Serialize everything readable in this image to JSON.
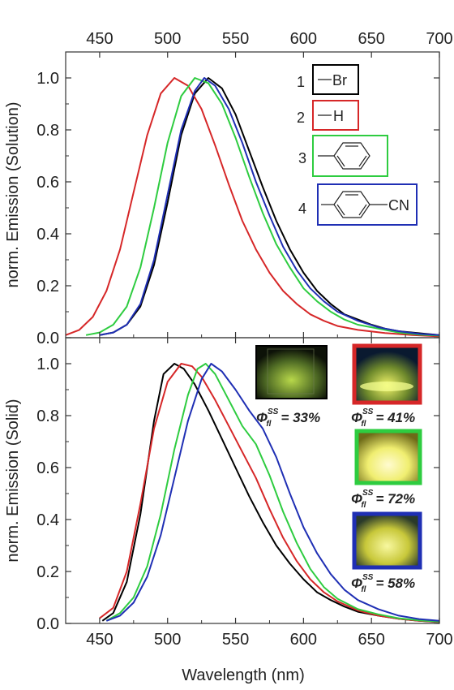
{
  "chart_data": [
    {
      "type": "line",
      "panel": "top",
      "xlabel": "",
      "ylabel": "norm. Emission (Solution)",
      "xlim": [
        425,
        700
      ],
      "ylim": [
        0,
        1.1
      ],
      "x_ticks": [
        450,
        500,
        550,
        600,
        650,
        700
      ],
      "y_ticks": [
        "0.0",
        "0.2",
        "0.4",
        "0.6",
        "0.8",
        "1.0"
      ],
      "x_tick_position": "top",
      "series": [
        {
          "color": "#000000",
          "points": [
            [
              450,
              0.01
            ],
            [
              460,
              0.02
            ],
            [
              470,
              0.05
            ],
            [
              480,
              0.12
            ],
            [
              490,
              0.28
            ],
            [
              500,
              0.52
            ],
            [
              510,
              0.78
            ],
            [
              520,
              0.94
            ],
            [
              530,
              1.0
            ],
            [
              540,
              0.96
            ],
            [
              550,
              0.86
            ],
            [
              560,
              0.72
            ],
            [
              570,
              0.58
            ],
            [
              580,
              0.45
            ],
            [
              590,
              0.34
            ],
            [
              600,
              0.25
            ],
            [
              610,
              0.18
            ],
            [
              620,
              0.13
            ],
            [
              630,
              0.09
            ],
            [
              640,
              0.07
            ],
            [
              650,
              0.05
            ],
            [
              660,
              0.035
            ],
            [
              670,
              0.025
            ],
            [
              680,
              0.02
            ],
            [
              690,
              0.015
            ],
            [
              700,
              0.01
            ]
          ]
        },
        {
          "color": "#d62728",
          "points": [
            [
              425,
              0.01
            ],
            [
              435,
              0.03
            ],
            [
              445,
              0.08
            ],
            [
              455,
              0.18
            ],
            [
              465,
              0.34
            ],
            [
              475,
              0.56
            ],
            [
              485,
              0.78
            ],
            [
              495,
              0.94
            ],
            [
              505,
              1.0
            ],
            [
              515,
              0.97
            ],
            [
              525,
              0.88
            ],
            [
              535,
              0.74
            ],
            [
              545,
              0.59
            ],
            [
              555,
              0.45
            ],
            [
              565,
              0.34
            ],
            [
              575,
              0.25
            ],
            [
              585,
              0.18
            ],
            [
              595,
              0.13
            ],
            [
              605,
              0.09
            ],
            [
              615,
              0.065
            ],
            [
              625,
              0.045
            ],
            [
              640,
              0.03
            ],
            [
              660,
              0.018
            ],
            [
              680,
              0.01
            ],
            [
              700,
              0.005
            ]
          ]
        },
        {
          "color": "#2ecc40",
          "points": [
            [
              440,
              0.01
            ],
            [
              450,
              0.02
            ],
            [
              460,
              0.05
            ],
            [
              470,
              0.12
            ],
            [
              480,
              0.27
            ],
            [
              490,
              0.5
            ],
            [
              500,
              0.75
            ],
            [
              510,
              0.93
            ],
            [
              520,
              1.0
            ],
            [
              530,
              0.98
            ],
            [
              540,
              0.9
            ],
            [
              550,
              0.77
            ],
            [
              560,
              0.62
            ],
            [
              570,
              0.48
            ],
            [
              580,
              0.36
            ],
            [
              590,
              0.27
            ],
            [
              600,
              0.19
            ],
            [
              610,
              0.14
            ],
            [
              620,
              0.1
            ],
            [
              630,
              0.07
            ],
            [
              640,
              0.05
            ],
            [
              655,
              0.035
            ],
            [
              670,
              0.02
            ],
            [
              685,
              0.012
            ],
            [
              700,
              0.008
            ]
          ]
        },
        {
          "color": "#1f2fb4",
          "points": [
            [
              450,
              0.01
            ],
            [
              460,
              0.02
            ],
            [
              470,
              0.05
            ],
            [
              480,
              0.13
            ],
            [
              490,
              0.3
            ],
            [
              500,
              0.55
            ],
            [
              510,
              0.8
            ],
            [
              520,
              0.95
            ],
            [
              527,
              1.0
            ],
            [
              535,
              0.97
            ],
            [
              545,
              0.88
            ],
            [
              555,
              0.75
            ],
            [
              565,
              0.6
            ],
            [
              575,
              0.47
            ],
            [
              585,
              0.35
            ],
            [
              595,
              0.26
            ],
            [
              605,
              0.19
            ],
            [
              615,
              0.14
            ],
            [
              625,
              0.1
            ],
            [
              640,
              0.065
            ],
            [
              655,
              0.04
            ],
            [
              670,
              0.025
            ],
            [
              685,
              0.015
            ],
            [
              700,
              0.01
            ]
          ]
        }
      ],
      "legend": [
        {
          "number": "1",
          "substituent": "Br",
          "color": "#000000"
        },
        {
          "number": "2",
          "substituent": "H",
          "color": "#d62728"
        },
        {
          "number": "3",
          "substituent": "",
          "color": "#2ecc40"
        },
        {
          "number": "4",
          "substituent": "CN",
          "color": "#1f2fb4"
        }
      ]
    },
    {
      "type": "line",
      "panel": "bottom",
      "xlabel": "Wavelength (nm)",
      "ylabel": "norm. Emission (Solid)",
      "xlim": [
        425,
        700
      ],
      "ylim": [
        0,
        1.1
      ],
      "x_ticks": [
        450,
        500,
        550,
        600,
        650,
        700
      ],
      "y_ticks": [
        "0.0",
        "0.2",
        "0.4",
        "0.6",
        "0.8",
        "1.0"
      ],
      "series": [
        {
          "color": "#000000",
          "points": [
            [
              452,
              0.01
            ],
            [
              460,
              0.04
            ],
            [
              470,
              0.16
            ],
            [
              480,
              0.42
            ],
            [
              490,
              0.78
            ],
            [
              497,
              0.96
            ],
            [
              505,
              1.0
            ],
            [
              512,
              0.98
            ],
            [
              520,
              0.92
            ],
            [
              530,
              0.82
            ],
            [
              540,
              0.71
            ],
            [
              550,
              0.6
            ],
            [
              560,
              0.49
            ],
            [
              570,
              0.39
            ],
            [
              580,
              0.3
            ],
            [
              590,
              0.23
            ],
            [
              600,
              0.17
            ],
            [
              610,
              0.12
            ],
            [
              620,
              0.09
            ],
            [
              630,
              0.065
            ],
            [
              640,
              0.045
            ],
            [
              655,
              0.03
            ],
            [
              670,
              0.018
            ],
            [
              685,
              0.01
            ],
            [
              700,
              0.005
            ]
          ]
        },
        {
          "color": "#d62728",
          "points": [
            [
              450,
              0.02
            ],
            [
              460,
              0.06
            ],
            [
              470,
              0.2
            ],
            [
              480,
              0.46
            ],
            [
              490,
              0.75
            ],
            [
              500,
              0.93
            ],
            [
              510,
              1.0
            ],
            [
              518,
              0.99
            ],
            [
              525,
              0.95
            ],
            [
              535,
              0.86
            ],
            [
              545,
              0.76
            ],
            [
              555,
              0.66
            ],
            [
              565,
              0.56
            ],
            [
              575,
              0.44
            ],
            [
              585,
              0.33
            ],
            [
              595,
              0.24
            ],
            [
              605,
              0.17
            ],
            [
              615,
              0.12
            ],
            [
              625,
              0.085
            ],
            [
              640,
              0.05
            ],
            [
              655,
              0.03
            ],
            [
              670,
              0.018
            ],
            [
              685,
              0.01
            ],
            [
              700,
              0.006
            ]
          ]
        },
        {
          "color": "#2ecc40",
          "points": [
            [
              455,
              0.01
            ],
            [
              465,
              0.04
            ],
            [
              475,
              0.1
            ],
            [
              485,
              0.22
            ],
            [
              495,
              0.42
            ],
            [
              505,
              0.67
            ],
            [
              515,
              0.88
            ],
            [
              522,
              0.98
            ],
            [
              528,
              1.0
            ],
            [
              535,
              0.96
            ],
            [
              545,
              0.86
            ],
            [
              555,
              0.76
            ],
            [
              565,
              0.69
            ],
            [
              575,
              0.57
            ],
            [
              585,
              0.43
            ],
            [
              595,
              0.31
            ],
            [
              605,
              0.21
            ],
            [
              615,
              0.14
            ],
            [
              625,
              0.095
            ],
            [
              640,
              0.055
            ],
            [
              655,
              0.035
            ],
            [
              670,
              0.02
            ],
            [
              685,
              0.012
            ],
            [
              700,
              0.007
            ]
          ]
        },
        {
          "color": "#1f2fb4",
          "points": [
            [
              455,
              0.01
            ],
            [
              465,
              0.03
            ],
            [
              475,
              0.08
            ],
            [
              485,
              0.18
            ],
            [
              495,
              0.34
            ],
            [
              505,
              0.56
            ],
            [
              515,
              0.78
            ],
            [
              525,
              0.94
            ],
            [
              532,
              1.0
            ],
            [
              540,
              0.97
            ],
            [
              550,
              0.9
            ],
            [
              560,
              0.82
            ],
            [
              570,
              0.75
            ],
            [
              580,
              0.64
            ],
            [
              590,
              0.5
            ],
            [
              600,
              0.37
            ],
            [
              610,
              0.27
            ],
            [
              620,
              0.19
            ],
            [
              630,
              0.13
            ],
            [
              640,
              0.09
            ],
            [
              655,
              0.055
            ],
            [
              670,
              0.03
            ],
            [
              685,
              0.017
            ],
            [
              700,
              0.01
            ]
          ]
        }
      ],
      "photos": [
        {
          "color": "#000000",
          "phi": "Φ",
          "sub": "fl",
          "sup": "SS",
          "value": "= 33%"
        },
        {
          "color": "#d62728",
          "phi": "Φ",
          "sub": "fl",
          "sup": "SS",
          "value": "= 41%"
        },
        {
          "color": "#2ecc40",
          "phi": "Φ",
          "sub": "fl",
          "sup": "SS",
          "value": "= 72%"
        },
        {
          "color": "#1f2fb4",
          "phi": "Φ",
          "sub": "fl",
          "sup": "SS",
          "value": "= 58%"
        }
      ]
    }
  ]
}
